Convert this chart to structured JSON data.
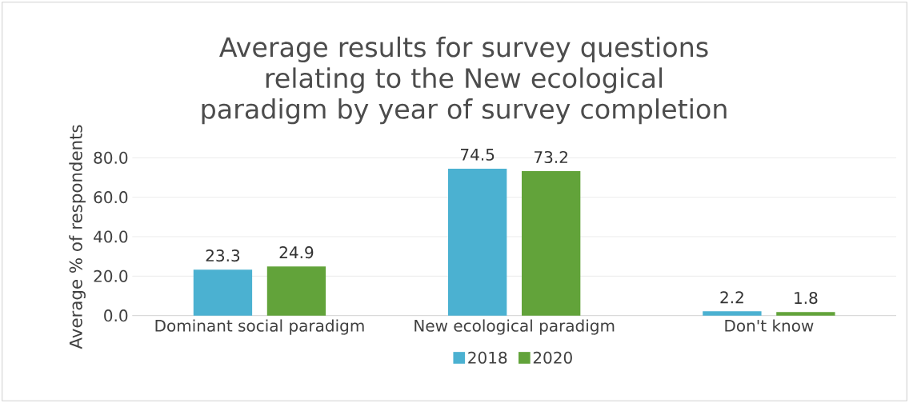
{
  "chart_data": {
    "type": "bar",
    "title": "Average results for survey questions relating to the New ecological paradigm by year of survey completion",
    "ylabel": "Average % of respondents",
    "categories": [
      "Dominant social paradigm",
      "New ecological paradigm",
      "Don't know"
    ],
    "series": [
      {
        "name": "2018",
        "color": "#4bb1d1",
        "values": [
          23.3,
          74.5,
          2.2
        ]
      },
      {
        "name": "2020",
        "color": "#62a33a",
        "values": [
          24.9,
          73.2,
          1.8
        ]
      }
    ],
    "ylim": [
      0,
      80
    ],
    "yticks": [
      {
        "value": 0,
        "label": "0.0"
      },
      {
        "value": 20,
        "label": "20.0"
      },
      {
        "value": 40,
        "label": "40.0"
      },
      {
        "value": 60,
        "label": "60.0"
      },
      {
        "value": 80,
        "label": "80.0"
      }
    ],
    "grid": "y",
    "legend": "bottom",
    "data_labels": true
  }
}
